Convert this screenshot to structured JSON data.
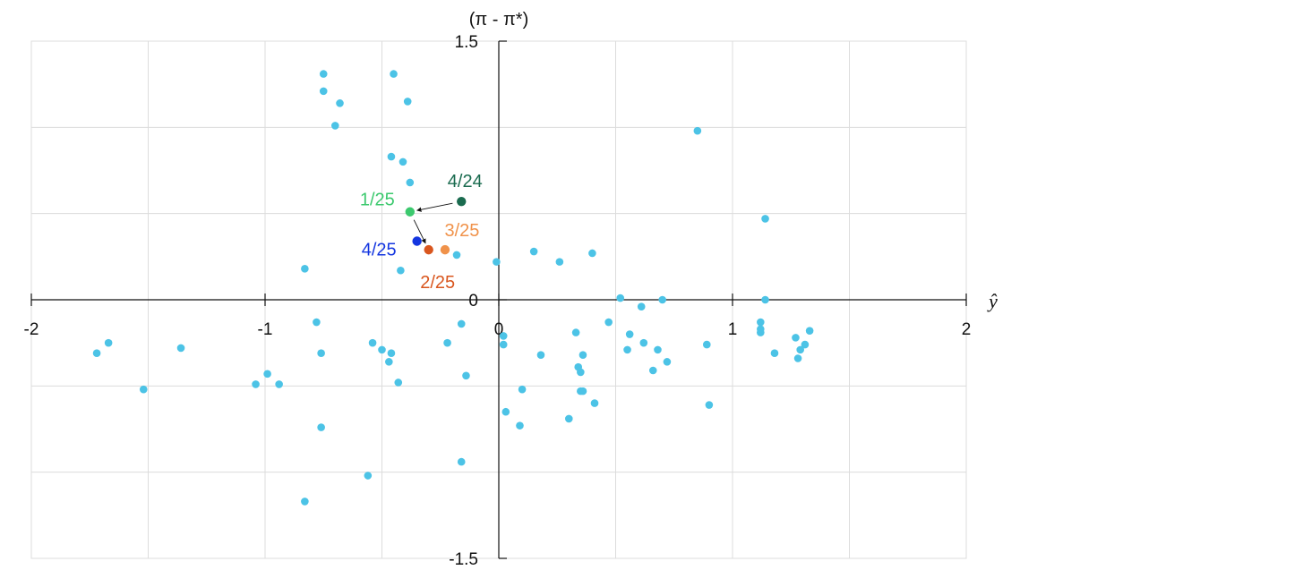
{
  "chart_data": {
    "type": "scatter",
    "xlabel": "ŷ",
    "ylabel": "(π - π*)",
    "xlim": [
      -2,
      2
    ],
    "ylim": [
      -1.5,
      1.5
    ],
    "x_ticks": [
      -2,
      -1,
      0,
      1,
      2
    ],
    "x_tick_labels": [
      "-2",
      "-1",
      "0",
      "1",
      "2"
    ],
    "y_ticks": [
      1.5,
      0,
      -1.5
    ],
    "y_tick_labels": [
      "1.5",
      "0",
      "-1.5"
    ],
    "grid": true,
    "grid_x": [
      -1.5,
      -1,
      -0.5,
      0.5,
      1,
      1.5
    ],
    "grid_y": [
      1,
      0.5,
      -0.5,
      -1
    ],
    "colors": {
      "points": "#4cc3e6",
      "grid": "#dcdcdc",
      "axis": "#111111",
      "arrow": "#111111"
    },
    "points": [
      {
        "x": -0.75,
        "y": 1.31
      },
      {
        "x": -0.45,
        "y": 1.31
      },
      {
        "x": -0.75,
        "y": 1.21
      },
      {
        "x": -0.39,
        "y": 1.15
      },
      {
        "x": -0.68,
        "y": 1.14
      },
      {
        "x": -0.7,
        "y": 1.01
      },
      {
        "x": 0.85,
        "y": 0.98
      },
      {
        "x": -0.46,
        "y": 0.83
      },
      {
        "x": -0.41,
        "y": 0.8
      },
      {
        "x": -0.38,
        "y": 0.68
      },
      {
        "x": 1.14,
        "y": 0.47
      },
      {
        "x": 0.15,
        "y": 0.28
      },
      {
        "x": 0.4,
        "y": 0.27
      },
      {
        "x": 0.26,
        "y": 0.22
      },
      {
        "x": -0.18,
        "y": 0.26
      },
      {
        "x": -0.01,
        "y": 0.22
      },
      {
        "x": -0.83,
        "y": 0.18
      },
      {
        "x": -0.42,
        "y": 0.17
      },
      {
        "x": 0.52,
        "y": 0.01
      },
      {
        "x": 0.7,
        "y": 0.0
      },
      {
        "x": 1.14,
        "y": 0.0
      },
      {
        "x": 0.61,
        "y": -0.04
      },
      {
        "x": -0.78,
        "y": -0.13
      },
      {
        "x": -0.16,
        "y": -0.14
      },
      {
        "x": 0.47,
        "y": -0.13
      },
      {
        "x": 1.12,
        "y": -0.13
      },
      {
        "x": 1.12,
        "y": -0.17
      },
      {
        "x": 1.33,
        "y": -0.18
      },
      {
        "x": 1.12,
        "y": -0.19
      },
      {
        "x": 0.02,
        "y": -0.21
      },
      {
        "x": 0.33,
        "y": -0.19
      },
      {
        "x": 0.56,
        "y": -0.2
      },
      {
        "x": 1.27,
        "y": -0.22
      },
      {
        "x": -1.67,
        "y": -0.25
      },
      {
        "x": -0.54,
        "y": -0.25
      },
      {
        "x": -0.22,
        "y": -0.25
      },
      {
        "x": 0.02,
        "y": -0.26
      },
      {
        "x": 0.62,
        "y": -0.25
      },
      {
        "x": 0.89,
        "y": -0.26
      },
      {
        "x": 1.31,
        "y": -0.26
      },
      {
        "x": -1.36,
        "y": -0.28
      },
      {
        "x": -0.5,
        "y": -0.29
      },
      {
        "x": 0.55,
        "y": -0.29
      },
      {
        "x": 0.68,
        "y": -0.29
      },
      {
        "x": 1.29,
        "y": -0.29
      },
      {
        "x": -1.72,
        "y": -0.31
      },
      {
        "x": -0.76,
        "y": -0.31
      },
      {
        "x": -0.46,
        "y": -0.31
      },
      {
        "x": 0.18,
        "y": -0.32
      },
      {
        "x": 0.36,
        "y": -0.32
      },
      {
        "x": 1.18,
        "y": -0.31
      },
      {
        "x": -0.47,
        "y": -0.36
      },
      {
        "x": 0.72,
        "y": -0.36
      },
      {
        "x": 1.28,
        "y": -0.34
      },
      {
        "x": 0.34,
        "y": -0.39
      },
      {
        "x": -0.99,
        "y": -0.43
      },
      {
        "x": 0.35,
        "y": -0.42
      },
      {
        "x": 0.66,
        "y": -0.41
      },
      {
        "x": -0.14,
        "y": -0.44
      },
      {
        "x": -0.43,
        "y": -0.48
      },
      {
        "x": -1.04,
        "y": -0.49
      },
      {
        "x": -0.94,
        "y": -0.49
      },
      {
        "x": -1.52,
        "y": -0.52
      },
      {
        "x": 0.1,
        "y": -0.52
      },
      {
        "x": 0.35,
        "y": -0.53
      },
      {
        "x": 0.36,
        "y": -0.53
      },
      {
        "x": 0.41,
        "y": -0.6
      },
      {
        "x": 0.9,
        "y": -0.61
      },
      {
        "x": 0.03,
        "y": -0.65
      },
      {
        "x": 0.3,
        "y": -0.69
      },
      {
        "x": -0.76,
        "y": -0.74
      },
      {
        "x": 0.09,
        "y": -0.73
      },
      {
        "x": -0.56,
        "y": -1.02
      },
      {
        "x": -0.16,
        "y": -0.94
      },
      {
        "x": -0.83,
        "y": -1.17
      }
    ],
    "highlights": [
      {
        "label": "4/24",
        "x": -0.16,
        "y": 0.57,
        "color": "#1a6b4f"
      },
      {
        "label": "1/25",
        "x": -0.38,
        "y": 0.51,
        "color": "#3cc96e"
      },
      {
        "label": "4/25",
        "x": -0.35,
        "y": 0.34,
        "color": "#1436e0"
      },
      {
        "label": "2/25",
        "x": -0.3,
        "y": 0.29,
        "color": "#d9561e"
      },
      {
        "label": "3/25",
        "x": -0.23,
        "y": 0.29,
        "color": "#f0924a"
      }
    ],
    "arrows": [
      {
        "from": "4/24",
        "to": "1/25"
      },
      {
        "from": "1/25",
        "to": "2/25"
      }
    ]
  }
}
